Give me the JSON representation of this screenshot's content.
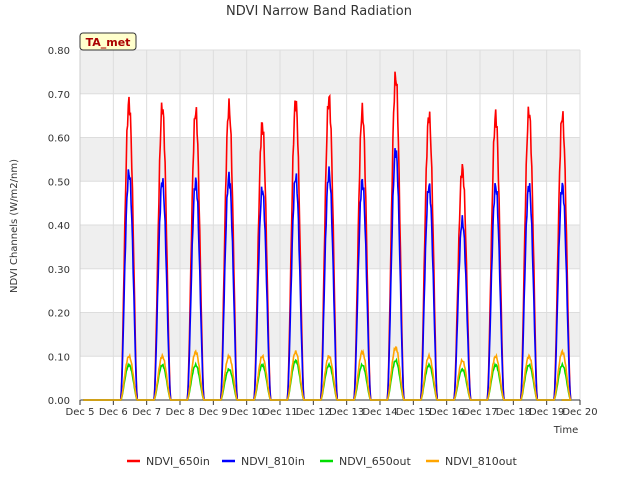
{
  "chart_data": {
    "type": "line",
    "title": "NDVI Narrow Band Radiation",
    "xlabel": "Time",
    "ylabel": "NDVI Channels (W/m2/nm)",
    "station_label": "TA_met",
    "ylim": [
      0,
      0.8
    ],
    "yticks": [
      "0.00",
      "0.10",
      "0.20",
      "0.30",
      "0.40",
      "0.50",
      "0.60",
      "0.70",
      "0.80"
    ],
    "xlim_day": [
      5,
      20
    ],
    "xticks": [
      "Dec 5",
      "Dec 6",
      "Dec 7",
      "Dec 8",
      "Dec 9",
      "Dec 10",
      "Dec 11",
      "Dec 12",
      "Dec 13",
      "Dec 14",
      "Dec 15",
      "Dec 16",
      "Dec 17",
      "Dec 18",
      "Dec 19",
      "Dec 20"
    ],
    "grid": true,
    "legend_position": "bottom",
    "days": [
      "Dec 6",
      "Dec 7",
      "Dec 8",
      "Dec 9",
      "Dec 10",
      "Dec 11",
      "Dec 12",
      "Dec 13",
      "Dec 14",
      "Dec 15",
      "Dec 16",
      "Dec 17",
      "Dec 18",
      "Dec 19"
    ],
    "series": [
      {
        "name": "NDVI_650in",
        "color": "#ff0000",
        "daily_peaks": [
          0.68,
          0.67,
          0.66,
          0.67,
          0.63,
          0.68,
          0.69,
          0.66,
          0.74,
          0.65,
          0.53,
          0.65,
          0.66,
          0.65
        ]
      },
      {
        "name": "NDVI_810in",
        "color": "#0000ff",
        "daily_peaks": [
          0.52,
          0.5,
          0.5,
          0.51,
          0.48,
          0.51,
          0.52,
          0.5,
          0.57,
          0.49,
          0.41,
          0.49,
          0.49,
          0.49
        ]
      },
      {
        "name": "NDVI_650out",
        "color": "#00dd00",
        "daily_peaks": [
          0.08,
          0.08,
          0.08,
          0.07,
          0.08,
          0.09,
          0.08,
          0.08,
          0.09,
          0.08,
          0.07,
          0.08,
          0.08,
          0.08
        ]
      },
      {
        "name": "NDVI_810out",
        "color": "#ffa500",
        "daily_peaks": [
          0.1,
          0.1,
          0.11,
          0.1,
          0.1,
          0.11,
          0.1,
          0.11,
          0.12,
          0.1,
          0.09,
          0.1,
          0.1,
          0.11
        ]
      }
    ]
  }
}
